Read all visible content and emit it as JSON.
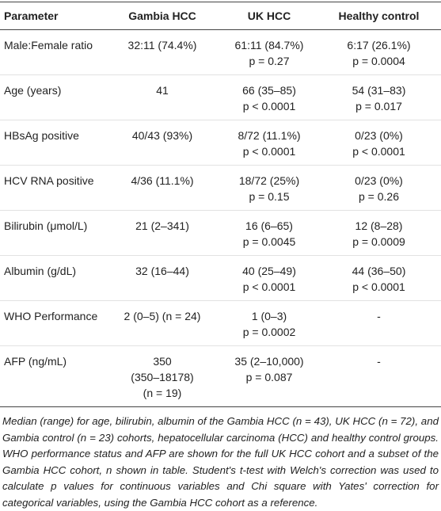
{
  "table": {
    "header": [
      "Parameter",
      "Gambia HCC",
      "UK HCC",
      "Healthy control"
    ],
    "rows": [
      [
        [
          "Male:Female ratio"
        ],
        [
          "32:11 (74.4%)"
        ],
        [
          "61:11 (84.7%)",
          "p = 0.27"
        ],
        [
          "6:17 (26.1%)",
          "p = 0.0004"
        ]
      ],
      [
        [
          "Age (years)"
        ],
        [
          "41"
        ],
        [
          "66 (35–85)",
          "p < 0.0001"
        ],
        [
          "54 (31–83)",
          "p = 0.017"
        ]
      ],
      [
        [
          "HBsAg positive"
        ],
        [
          "40/43 (93%)"
        ],
        [
          "8/72 (11.1%)",
          "p < 0.0001"
        ],
        [
          "0/23 (0%)",
          "p < 0.0001"
        ]
      ],
      [
        [
          "HCV RNA positive"
        ],
        [
          "4/36 (11.1%)"
        ],
        [
          "18/72 (25%)",
          "p = 0.15"
        ],
        [
          "0/23 (0%)",
          "p = 0.26"
        ]
      ],
      [
        [
          "Bilirubin (μmol/L)"
        ],
        [
          "21 (2–341)"
        ],
        [
          "16 (6–65)",
          "p = 0.0045"
        ],
        [
          "12 (8–28)",
          "p = 0.0009"
        ]
      ],
      [
        [
          "Albumin (g/dL)"
        ],
        [
          "32 (16–44)"
        ],
        [
          "40 (25–49)",
          "p < 0.0001"
        ],
        [
          "44 (36–50)",
          "p < 0.0001"
        ]
      ],
      [
        [
          "WHO Performance"
        ],
        [
          "2 (0–5) (n = 24)"
        ],
        [
          "1 (0–3)",
          "p = 0.0002"
        ],
        [
          "-"
        ]
      ],
      [
        [
          "AFP (ng/mL)"
        ],
        [
          "350",
          "(350–18178)",
          "(n = 19)"
        ],
        [
          "35 (2–10,000)",
          "p = 0.087"
        ],
        [
          "-"
        ]
      ]
    ]
  },
  "footnote": "Median (range) for age, bilirubin, albumin of the Gambia HCC (n = 43), UK HCC (n = 72), and Gambia control (n = 23) cohorts, hepatocellular carcinoma (HCC) and healthy control groups. WHO performance status and AFP are shown for the full UK HCC cohort and a subset of the Gambia HCC cohort, n shown in table. Student's t-test with Welch's correction was used to calculate p values for continuous variables and Chi square with Yates' correction for categorical variables, using the Gambia HCC cohort as a reference."
}
